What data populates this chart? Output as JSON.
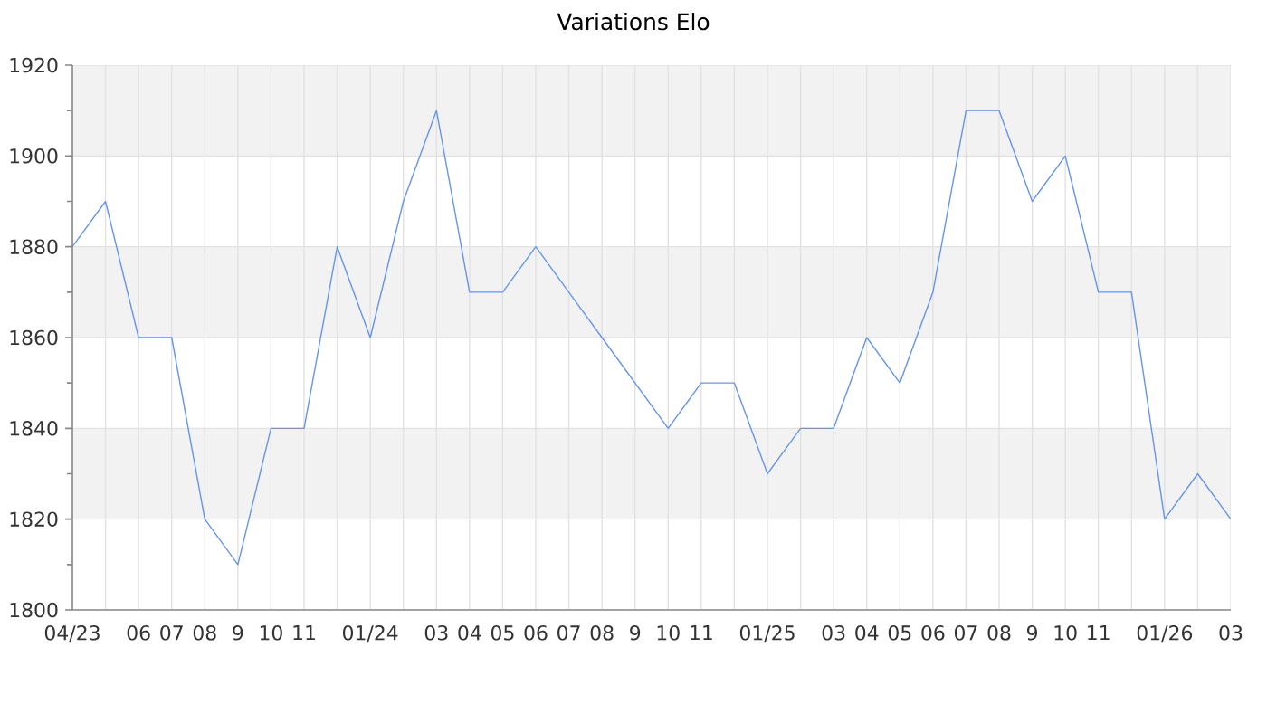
{
  "chart_data": {
    "type": "line",
    "title": "Variations Elo",
    "categories": [
      "04/23",
      null,
      "06",
      "07",
      "08",
      "9",
      "10",
      "11",
      null,
      "01/24",
      null,
      "03",
      "04",
      "05",
      "06",
      "07",
      "08",
      "9",
      "10",
      "11",
      null,
      "01/25",
      null,
      "03",
      "04",
      "05",
      "06",
      "07",
      "08",
      "9",
      "10",
      "11",
      null,
      "01/26",
      null,
      "03"
    ],
    "values": [
      1880,
      1890,
      1860,
      1860,
      1820,
      1810,
      1840,
      1840,
      1880,
      1860,
      1890,
      1910,
      1870,
      1870,
      1880,
      1870,
      1860,
      1850,
      1840,
      1850,
      1850,
      1830,
      1840,
      1840,
      1860,
      1850,
      1870,
      1910,
      1910,
      1890,
      1900,
      1870,
      1870,
      1820,
      1830,
      1820
    ],
    "color": "#6495ed",
    "ylim": [
      1800,
      1920
    ],
    "yticks": [
      1800,
      1820,
      1840,
      1860,
      1880,
      1900,
      1920
    ],
    "grid": true,
    "bands": [
      {
        "axis": "y",
        "from": 1820,
        "to": 1840,
        "color": "#f2f2f2"
      },
      {
        "axis": "y",
        "from": 1860,
        "to": 1880,
        "color": "#f2f2f2"
      },
      {
        "axis": "y",
        "from": 1900,
        "to": 1920,
        "color": "#f2f2f2"
      }
    ]
  }
}
